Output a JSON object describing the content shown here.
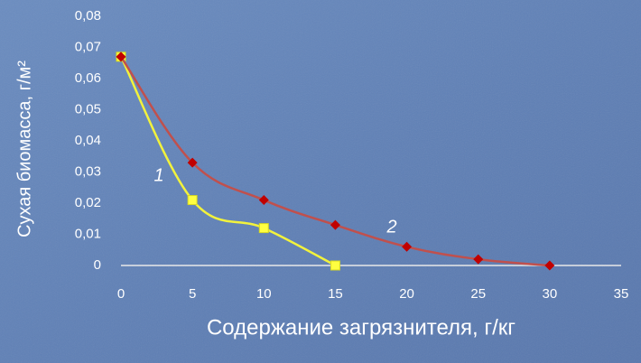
{
  "chart_data": {
    "type": "line",
    "y_label": "Сухая биомасса, г/м²",
    "x_label": "Содержание загрязнителя, г/кг",
    "xlim": [
      0,
      35
    ],
    "xticks": [
      0,
      5,
      10,
      15,
      20,
      25,
      30,
      35
    ],
    "ylim": [
      0,
      0.08
    ],
    "yticks": [
      0,
      {
        "value": 0.01,
        "label": "0,01"
      },
      {
        "value": 0.02,
        "label": "0,02"
      },
      {
        "value": 0.03,
        "label": "0,03"
      },
      {
        "value": 0.04,
        "label": "0,04"
      },
      {
        "value": 0.05,
        "label": "0,05"
      },
      {
        "value": 0.06,
        "label": "0,06"
      },
      {
        "value": 0.07,
        "label": "0,07"
      },
      {
        "value": 0.08,
        "label": "0,08"
      }
    ],
    "series": [
      {
        "name": "1",
        "color": "#f2f23c",
        "marker": "square",
        "x": [
          0,
          5,
          10,
          15
        ],
        "values": [
          0.067,
          0.021,
          0.012,
          0
        ]
      },
      {
        "name": "2",
        "color": "#c0504d",
        "marker": "diamond",
        "x": [
          0,
          5,
          10,
          15,
          20,
          25,
          30
        ],
        "values": [
          0.067,
          0.033,
          0.021,
          0.013,
          0.006,
          0.002,
          0
        ]
      }
    ]
  }
}
